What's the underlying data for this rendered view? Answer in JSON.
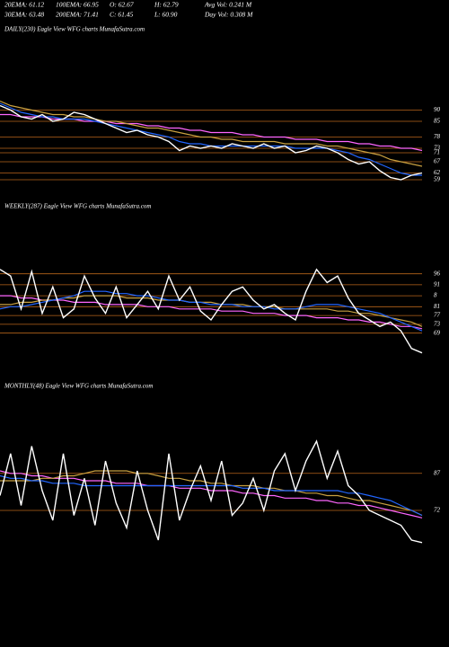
{
  "header": {
    "rows": [
      [
        "20EMA: 61.12",
        "100EMA: 66.95",
        "O: 62.67",
        "H: 62.79",
        "Avg Vol: 0.241 M"
      ],
      [
        "30EMA: 63.48",
        "200EMA: 71.41",
        "C: 61.45",
        "L: 60.90",
        "Day Vol: 0.308 M"
      ]
    ]
  },
  "chart_data": [
    {
      "type": "line",
      "title": "DAILY(230) Eagle  View  WFG charts MunafaSutra.com",
      "ylim": [
        55,
        97
      ],
      "yticks": [
        90,
        85,
        78,
        73,
        71,
        67,
        62,
        59
      ],
      "level_color": "#b8651b",
      "series": [
        {
          "color": "#ff66ff",
          "values": [
            88,
            88,
            87,
            87,
            87,
            86,
            86,
            86,
            85,
            85,
            85,
            84,
            84,
            84,
            83,
            83,
            82,
            82,
            81,
            81,
            80,
            80,
            80,
            79,
            79,
            78,
            78,
            78,
            77,
            77,
            77,
            76,
            76,
            76,
            75,
            75,
            74,
            74,
            73,
            73,
            72
          ]
        },
        {
          "color": "#c8a040",
          "values": [
            94,
            92,
            91,
            90,
            89,
            88,
            88,
            87,
            87,
            86,
            85,
            85,
            84,
            83,
            82,
            82,
            81,
            80,
            79,
            78,
            78,
            77,
            77,
            76,
            76,
            76,
            76,
            75,
            75,
            75,
            75,
            74,
            74,
            73,
            72,
            71,
            70,
            68,
            67,
            66,
            65
          ]
        },
        {
          "color": "#2266ff",
          "values": [
            93,
            91,
            89,
            88,
            87,
            87,
            86,
            86,
            86,
            85,
            84,
            83,
            82,
            81,
            80,
            79,
            78,
            76,
            75,
            75,
            74,
            74,
            74,
            74,
            74,
            74,
            74,
            74,
            73,
            73,
            73,
            73,
            72,
            71,
            69,
            68,
            66,
            64,
            62,
            61,
            61
          ]
        },
        {
          "color": "#ffffff",
          "values": [
            92,
            90,
            87,
            86,
            88,
            85,
            86,
            89,
            88,
            86,
            84,
            82,
            80,
            81,
            79,
            78,
            76,
            72,
            74,
            73,
            74,
            73,
            75,
            74,
            73,
            75,
            73,
            74,
            71,
            72,
            74,
            73,
            71,
            68,
            66,
            67,
            63,
            60,
            59,
            61,
            62
          ]
        }
      ]
    },
    {
      "type": "line",
      "title": "WEEKLY(287) Eagle  View  WFG charts MunafaSutra.com",
      "ylim": [
        57,
        102
      ],
      "yticks": [
        96,
        91,
        {
          "value": 86,
          "label": "8"
        },
        81,
        77,
        73,
        69
      ],
      "level_color": "#b8651b",
      "series": [
        {
          "color": "#ff66ff",
          "values": [
            86,
            86,
            85,
            85,
            84,
            84,
            84,
            83,
            83,
            83,
            82,
            82,
            82,
            82,
            81,
            81,
            81,
            80,
            80,
            80,
            80,
            79,
            79,
            79,
            78,
            78,
            78,
            77,
            77,
            77,
            76,
            76,
            76,
            75,
            75,
            74,
            74,
            73,
            72,
            72,
            71
          ]
        },
        {
          "color": "#c8a040",
          "values": [
            82,
            82,
            83,
            83,
            84,
            84,
            85,
            85,
            86,
            86,
            86,
            86,
            85,
            85,
            85,
            84,
            84,
            84,
            83,
            83,
            83,
            82,
            82,
            82,
            81,
            81,
            81,
            80,
            80,
            80,
            80,
            80,
            79,
            79,
            78,
            78,
            77,
            76,
            75,
            74,
            72
          ]
        },
        {
          "color": "#2266ff",
          "values": [
            80,
            81,
            81,
            82,
            83,
            84,
            85,
            86,
            88,
            88,
            88,
            87,
            87,
            86,
            86,
            85,
            84,
            84,
            83,
            83,
            82,
            82,
            82,
            81,
            81,
            81,
            80,
            80,
            80,
            81,
            82,
            82,
            82,
            81,
            80,
            79,
            78,
            76,
            74,
            72,
            70
          ]
        },
        {
          "color": "#ffffff",
          "values": [
            98,
            95,
            80,
            97,
            78,
            90,
            76,
            80,
            95,
            85,
            78,
            90,
            76,
            82,
            88,
            80,
            95,
            84,
            90,
            79,
            75,
            82,
            88,
            90,
            84,
            80,
            82,
            78,
            75,
            88,
            98,
            92,
            95,
            85,
            78,
            75,
            72,
            74,
            70,
            62,
            60
          ]
        }
      ]
    },
    {
      "type": "line",
      "title": "MONTHLY(48) Eagle  View  WFG charts MunafaSutra.com",
      "ylim": [
        56,
        104
      ],
      "yticks": [
        87,
        72
      ],
      "level_color": "#b8651b",
      "series": [
        {
          "color": "#ff66ff",
          "values": [
            88,
            87,
            87,
            86,
            86,
            85,
            85,
            85,
            84,
            84,
            84,
            83,
            83,
            83,
            82,
            82,
            82,
            81,
            81,
            81,
            80,
            80,
            80,
            79,
            79,
            78,
            78,
            77,
            77,
            77,
            76,
            76,
            75,
            75,
            74,
            74,
            73,
            72,
            71,
            70,
            69
          ]
        },
        {
          "color": "#c8a040",
          "values": [
            84,
            84,
            84,
            84,
            85,
            85,
            86,
            86,
            87,
            88,
            88,
            88,
            88,
            87,
            87,
            86,
            85,
            85,
            84,
            84,
            83,
            83,
            82,
            82,
            82,
            81,
            81,
            80,
            80,
            79,
            79,
            78,
            78,
            77,
            76,
            76,
            75,
            74,
            73,
            72,
            70
          ]
        },
        {
          "color": "#2266ff",
          "values": [
            86,
            85,
            85,
            84,
            84,
            83,
            83,
            83,
            82,
            82,
            82,
            82,
            82,
            82,
            82,
            82,
            82,
            82,
            82,
            82,
            82,
            82,
            82,
            81,
            81,
            81,
            80,
            80,
            80,
            80,
            80,
            80,
            80,
            79,
            79,
            78,
            77,
            76,
            74,
            72,
            70
          ]
        },
        {
          "color": "#ffffff",
          "values": [
            78,
            95,
            74,
            98,
            80,
            68,
            95,
            70,
            85,
            66,
            92,
            75,
            65,
            88,
            72,
            60,
            95,
            68,
            80,
            90,
            76,
            92,
            70,
            75,
            85,
            72,
            88,
            95,
            80,
            92,
            100,
            85,
            96,
            82,
            78,
            72,
            70,
            68,
            66,
            60,
            59
          ]
        }
      ]
    }
  ]
}
